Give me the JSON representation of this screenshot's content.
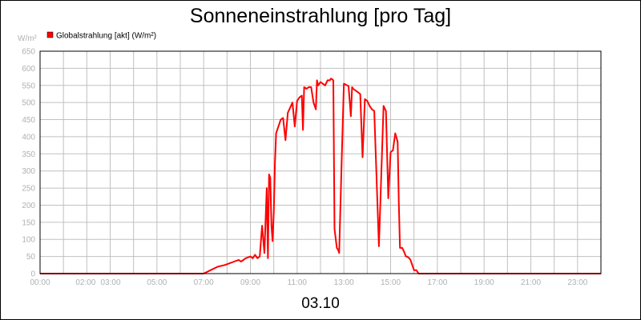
{
  "chart_data": {
    "type": "line",
    "title": "Sonneneinstrahlung [pro Tag]",
    "ylabel": "W/m²",
    "xlabel": "03.10",
    "ylim": [
      0,
      650
    ],
    "xlim_hours": [
      0,
      24
    ],
    "y_ticks": [
      "0",
      "50",
      "100",
      "150",
      "200",
      "250",
      "300",
      "350",
      "400",
      "450",
      "500",
      "550",
      "600",
      "650"
    ],
    "x_ticks": [
      {
        "h": 0,
        "label": "00:00"
      },
      {
        "h": 2,
        "label": "02:00"
      },
      {
        "h": 3,
        "label": "03:00"
      },
      {
        "h": 5,
        "label": "05:00"
      },
      {
        "h": 7,
        "label": "07:00"
      },
      {
        "h": 9,
        "label": "09:00"
      },
      {
        "h": 11,
        "label": "11:00"
      },
      {
        "h": 13,
        "label": "13:00"
      },
      {
        "h": 15,
        "label": "15:00"
      },
      {
        "h": 17,
        "label": "17:00"
      },
      {
        "h": 19,
        "label": "19:00"
      },
      {
        "h": 21,
        "label": "21:00"
      },
      {
        "h": 23,
        "label": "23:00"
      }
    ],
    "grid": true,
    "legend_position": "top-left",
    "series": [
      {
        "name": "Globalstrahlung [akt] (W/m²)",
        "color": "#ff0000",
        "x": [
          0,
          7.0,
          7.3,
          7.6,
          7.9,
          8.1,
          8.3,
          8.5,
          8.6,
          8.8,
          9.0,
          9.1,
          9.2,
          9.3,
          9.4,
          9.5,
          9.6,
          9.7,
          9.75,
          9.8,
          9.85,
          9.9,
          9.95,
          10.0,
          10.05,
          10.1,
          10.2,
          10.3,
          10.4,
          10.5,
          10.6,
          10.8,
          10.9,
          11.0,
          11.05,
          11.1,
          11.2,
          11.25,
          11.3,
          11.4,
          11.5,
          11.55,
          11.6,
          11.7,
          11.8,
          11.85,
          11.9,
          12.0,
          12.2,
          12.3,
          12.4,
          12.45,
          12.5,
          12.55,
          12.6,
          12.7,
          12.75,
          12.8,
          12.9,
          13.0,
          13.2,
          13.3,
          13.35,
          13.4,
          13.6,
          13.7,
          13.8,
          13.9,
          14.0,
          14.1,
          14.2,
          14.3,
          14.5,
          14.7,
          14.8,
          14.9,
          15.0,
          15.1,
          15.2,
          15.3,
          15.35,
          15.4,
          15.5,
          15.6,
          15.65,
          15.7,
          15.8,
          15.85,
          15.9,
          16.0,
          16.1,
          16.2,
          16.3,
          16.5,
          16.6,
          16.8,
          17.0,
          17.2,
          17.5,
          17.7,
          17.9,
          18.0,
          18.2,
          18.5,
          19.0,
          24
        ],
        "values": [
          0,
          0,
          10,
          20,
          25,
          30,
          35,
          40,
          35,
          45,
          50,
          45,
          55,
          45,
          50,
          140,
          60,
          250,
          45,
          290,
          280,
          140,
          95,
          180,
          320,
          410,
          430,
          450,
          455,
          390,
          470,
          500,
          430,
          505,
          510,
          515,
          520,
          420,
          545,
          540,
          545,
          545,
          545,
          500,
          480,
          565,
          550,
          560,
          550,
          565,
          565,
          570,
          568,
          565,
          130,
          75,
          70,
          60,
          320,
          555,
          548,
          460,
          545,
          540,
          530,
          525,
          340,
          510,
          505,
          490,
          480,
          475,
          80,
          490,
          475,
          220,
          355,
          360,
          410,
          385,
          210,
          75,
          75,
          60,
          50,
          50,
          45,
          40,
          30,
          10,
          10,
          0,
          0,
          0,
          0,
          0,
          0,
          0,
          0,
          0,
          0,
          0,
          0,
          0,
          0,
          0
        ]
      }
    ]
  }
}
